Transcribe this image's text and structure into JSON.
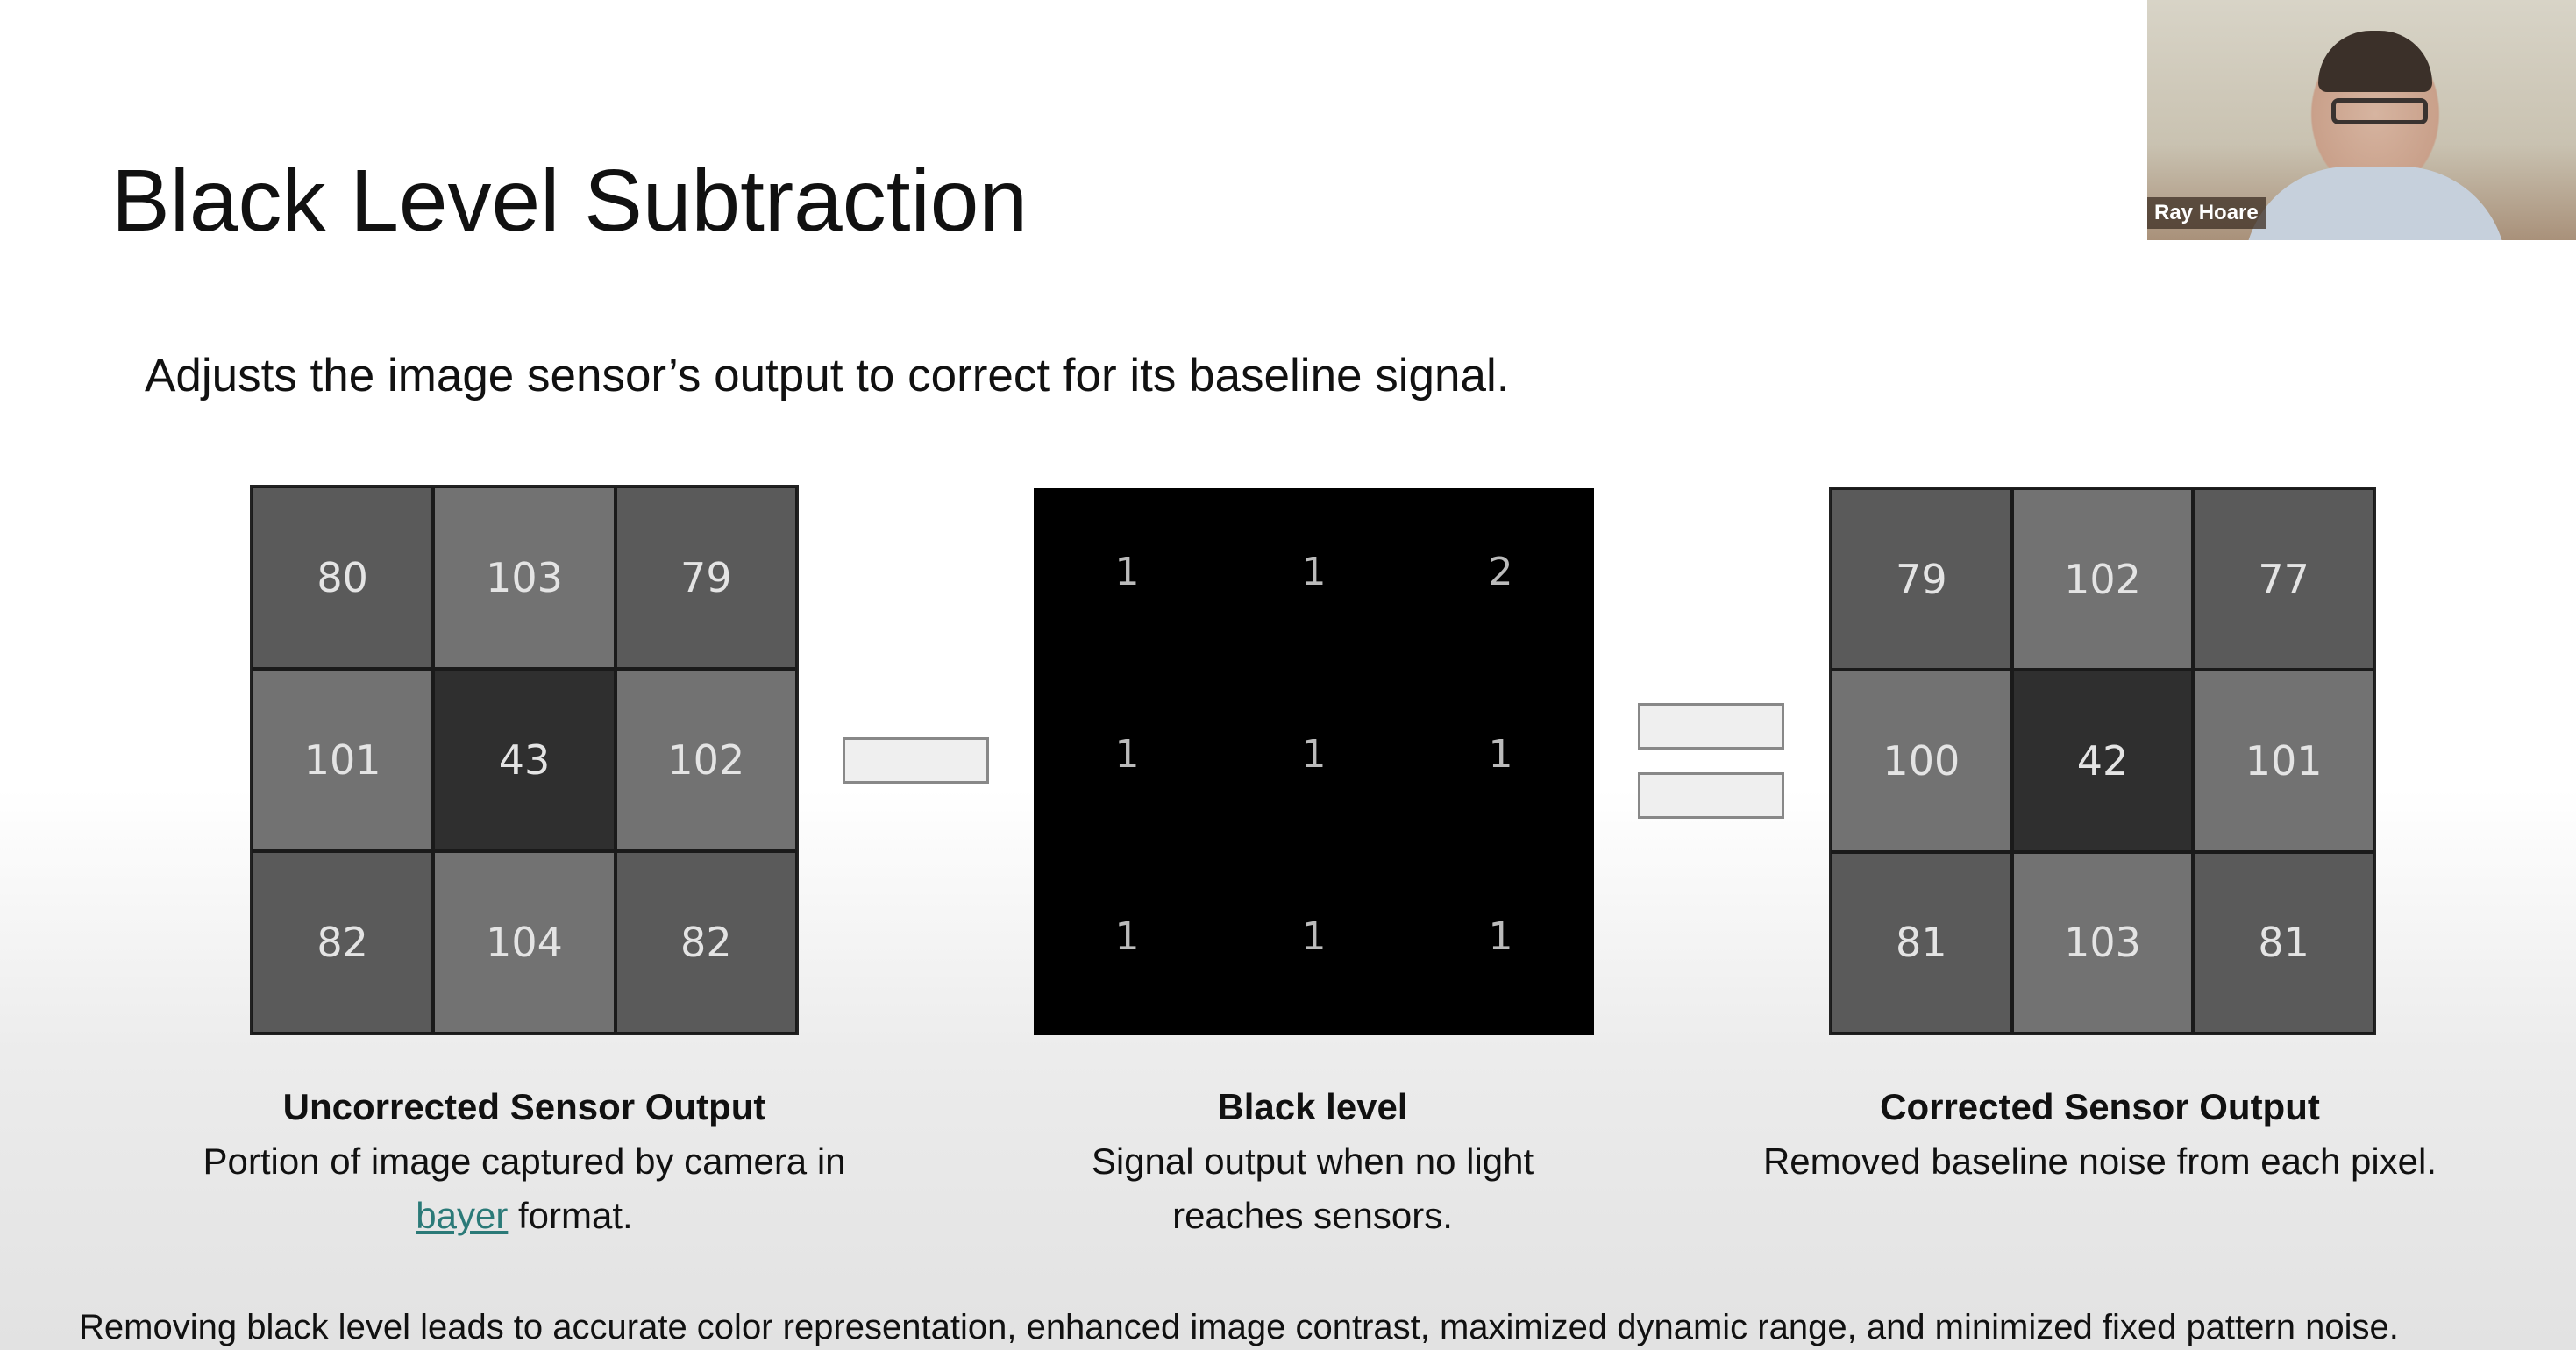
{
  "slide": {
    "title": "Black Level Subtraction",
    "subtitle": "Adjusts the image sensor’s output to correct for its baseline signal.",
    "uncorrected": {
      "values": [
        "80",
        "103",
        "79",
        "101",
        "43",
        "102",
        "82",
        "104",
        "82"
      ],
      "caption_title": "Uncorrected Sensor Output",
      "caption_text": "Portion of image captured by camera in",
      "caption_link": "bayer",
      "caption_end": " format."
    },
    "black_level": {
      "values": [
        "1",
        "1",
        "2",
        "1",
        "1",
        "1",
        "1",
        "1",
        "1"
      ],
      "caption_title": "Black level",
      "caption_text": "Signal output when no light reaches sensors."
    },
    "corrected": {
      "values": [
        "79",
        "102",
        "77",
        "100",
        "42",
        "101",
        "81",
        "103",
        "81"
      ],
      "caption_title": "Corrected Sensor Output",
      "caption_text": "Removed baseline noise from each pixel."
    },
    "operators": {
      "minus": "minus-icon",
      "equals": "equals-icon"
    },
    "footer": "Removing black level leads to accurate color representation, enhanced image contrast, maximized dynamic range, and minimized fixed pattern noise.",
    "colors": {
      "link": "#2b7a78",
      "cell_dark": "#5a5a5a",
      "cell_light": "#727272",
      "cell_center": "#2f2f2f"
    }
  },
  "webcam": {
    "participant_name": "Ray Hoare"
  }
}
